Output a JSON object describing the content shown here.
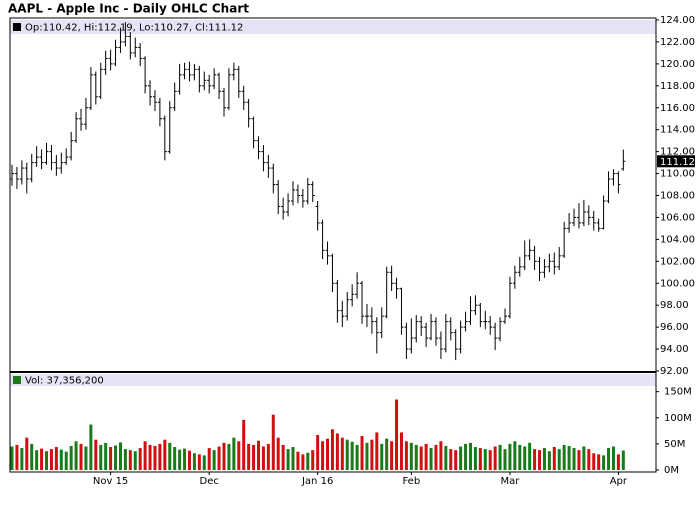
{
  "chart_data": {
    "type": "ohlc",
    "title": "AAPL - Apple Inc - Daily OHLC Chart",
    "ohlc_legend": "Op:110.42, Hi:112.19, Lo:110.27, Cl:111.12",
    "volume_legend": "Vol: 37,356,200",
    "categories": [
      null,
      null,
      null,
      null,
      null,
      null,
      null,
      null,
      null,
      null,
      null,
      null,
      null,
      null,
      null,
      null,
      null,
      null,
      null,
      null,
      "Nov 15",
      null,
      null,
      null,
      null,
      null,
      null,
      null,
      null,
      null,
      null,
      null,
      null,
      null,
      null,
      null,
      null,
      null,
      null,
      null,
      "Dec",
      null,
      null,
      null,
      null,
      null,
      null,
      null,
      null,
      null,
      null,
      null,
      null,
      null,
      null,
      null,
      null,
      null,
      null,
      null,
      null,
      null,
      "Jan 16",
      null,
      null,
      null,
      null,
      null,
      null,
      null,
      null,
      null,
      null,
      null,
      null,
      null,
      null,
      null,
      null,
      null,
      null,
      "Feb",
      null,
      null,
      null,
      null,
      null,
      null,
      null,
      null,
      null,
      null,
      null,
      null,
      null,
      null,
      null,
      null,
      null,
      null,
      null,
      "Mar",
      null,
      null,
      null,
      null,
      null,
      null,
      null,
      null,
      null,
      null,
      null,
      null,
      null,
      null,
      null,
      null,
      null,
      null,
      null,
      null,
      null,
      "Apr",
      null
    ],
    "open": [
      109.5,
      110,
      109.5,
      110.5,
      109.5,
      111,
      111.5,
      111,
      112,
      111,
      110.5,
      111,
      111.5,
      113,
      115,
      114.5,
      116,
      119,
      117,
      119.5,
      120.5,
      120,
      121.5,
      122,
      122.5,
      121,
      121.5,
      120.5,
      118,
      117,
      116.5,
      115,
      112,
      116,
      117.5,
      119,
      119.5,
      119,
      119.5,
      118,
      118.5,
      118,
      119,
      117.5,
      116,
      119,
      119.5,
      117.5,
      116.5,
      115,
      113,
      112,
      111,
      110.5,
      109,
      107,
      106.5,
      107.5,
      108.5,
      108,
      107.5,
      109,
      107,
      105.5,
      103,
      102.5,
      100,
      97.5,
      97,
      98.5,
      99,
      100,
      97,
      97,
      96.5,
      95.5,
      97,
      101,
      100,
      99.5,
      96,
      94,
      95,
      96.5,
      96,
      95,
      96.5,
      95,
      94,
      96.5,
      95.5,
      94,
      96,
      96.5,
      97.5,
      98,
      96.5,
      96.5,
      96,
      95,
      96.5,
      97,
      100,
      101,
      101.5,
      102.5,
      103,
      102,
      101,
      101.5,
      102,
      101.5,
      102.5,
      105,
      105.5,
      106,
      105.5,
      106.5,
      106,
      105.5,
      105,
      107.5,
      109.5,
      110,
      110.42
    ],
    "high": [
      110.8,
      110.6,
      111.2,
      111.0,
      111.8,
      112.5,
      112.2,
      112.8,
      112.6,
      111.7,
      111.9,
      112.3,
      113.8,
      115.6,
      115.9,
      116.9,
      119.7,
      119.3,
      120.1,
      121.2,
      121.3,
      122.2,
      123.3,
      123.8,
      122.9,
      122.4,
      121.9,
      120.7,
      118.5,
      117.6,
      116.9,
      115.3,
      116.6,
      118.3,
      120.0,
      120.1,
      120.2,
      120.0,
      119.8,
      119.3,
      119.0,
      119.6,
      119.2,
      117.8,
      119.6,
      120.1,
      119.8,
      118.0,
      116.8,
      115.2,
      113.4,
      112.6,
      111.7,
      110.9,
      109.4,
      107.8,
      108.2,
      109.3,
      109.0,
      108.6,
      109.6,
      109.3,
      107.5,
      105.8,
      103.8,
      102.7,
      100.3,
      98.4,
      99.2,
      99.9,
      101.0,
      100.2,
      98.1,
      97.8,
      96.9,
      97.8,
      101.5,
      101.6,
      100.5,
      99.6,
      96.4,
      96.8,
      97.1,
      97.0,
      96.4,
      97.2,
      96.9,
      95.6,
      97.2,
      96.9,
      95.8,
      96.6,
      97.4,
      98.8,
      98.9,
      98.2,
      97.5,
      97.0,
      96.4,
      96.9,
      97.7,
      100.6,
      101.6,
      102.4,
      103.9,
      104.0,
      103.4,
      102.4,
      102.2,
      102.7,
      102.8,
      103.3,
      105.6,
      106.4,
      106.8,
      107.3,
      107.6,
      107.1,
      106.6,
      105.9,
      108.0,
      110.2,
      110.4,
      110.2,
      112.19
    ],
    "low": [
      108.9,
      108.6,
      109.0,
      108.2,
      109.2,
      110.6,
      110.4,
      110.8,
      110.3,
      109.8,
      110.0,
      110.8,
      111.2,
      112.8,
      113.9,
      114.0,
      115.8,
      116.3,
      116.8,
      119.0,
      119.4,
      119.8,
      121.0,
      121.6,
      120.4,
      120.6,
      119.8,
      117.3,
      116.2,
      115.7,
      114.3,
      111.2,
      111.8,
      115.7,
      117.2,
      118.6,
      118.4,
      118.5,
      117.4,
      117.6,
      117.3,
      117.7,
      116.8,
      115.2,
      115.8,
      118.5,
      116.9,
      115.8,
      114.2,
      112.3,
      111.3,
      110.2,
      109.6,
      108.2,
      106.3,
      105.8,
      106.1,
      107.1,
      107.3,
      106.9,
      107.2,
      107.4,
      104.8,
      102.2,
      101.7,
      99.2,
      96.4,
      96.0,
      96.6,
      97.9,
      98.6,
      96.3,
      96.0,
      95.4,
      93.6,
      95.0,
      96.8,
      99.3,
      98.6,
      95.3,
      93.1,
      93.6,
      94.6,
      95.2,
      94.2,
      94.8,
      94.3,
      93.1,
      93.7,
      94.8,
      93.0,
      93.6,
      95.6,
      96.2,
      97.1,
      96.0,
      95.8,
      95.3,
      93.9,
      94.7,
      96.3,
      96.8,
      99.5,
      100.6,
      101.2,
      102.1,
      101.2,
      100.2,
      100.5,
      101.0,
      100.8,
      101.2,
      102.3,
      104.6,
      105.2,
      105.0,
      105.2,
      105.3,
      104.8,
      104.7,
      104.9,
      107.3,
      108.9,
      108.2,
      110.27
    ],
    "close": [
      110,
      109.5,
      110.5,
      109.5,
      111,
      111.5,
      111,
      112,
      111,
      110.5,
      111,
      111.5,
      113,
      115,
      114.5,
      116,
      119,
      117,
      119.5,
      120.5,
      120,
      121.5,
      122,
      122.5,
      121,
      121.5,
      120.5,
      118,
      117,
      116.5,
      115,
      112,
      116,
      117.5,
      119,
      119.5,
      119,
      119.5,
      118,
      118.5,
      118,
      119,
      117.5,
      116,
      119,
      119.5,
      117.5,
      116.5,
      115,
      113,
      112,
      111,
      110.5,
      109,
      107,
      106.5,
      107.5,
      108.5,
      108,
      107.5,
      109,
      108,
      105.5,
      103,
      102.5,
      100,
      97.5,
      97,
      98.5,
      99,
      100,
      97,
      97,
      96.5,
      95.5,
      97,
      101,
      100,
      99.5,
      96,
      94,
      95,
      96.5,
      96,
      95,
      96.5,
      95,
      94,
      96.5,
      95.5,
      94,
      96,
      96.5,
      97.5,
      98,
      96.5,
      96.5,
      96,
      95,
      96.5,
      97,
      100,
      101,
      101.5,
      102.5,
      103,
      102,
      101,
      101.5,
      102,
      101.5,
      102.5,
      105,
      105.5,
      106,
      105.5,
      106.5,
      106,
      105.5,
      105,
      107.5,
      109.5,
      110,
      109,
      111.12
    ],
    "volume": [
      45,
      48,
      42,
      62,
      50,
      38,
      41,
      36,
      40,
      44,
      39,
      35,
      46,
      55,
      50,
      45,
      87,
      58,
      48,
      52,
      44,
      47,
      53,
      40,
      38,
      36,
      42,
      55,
      48,
      46,
      50,
      58,
      52,
      44,
      39,
      41,
      37,
      32,
      30,
      28,
      42,
      38,
      45,
      52,
      50,
      62,
      55,
      96,
      50,
      48,
      56,
      45,
      50,
      106,
      62,
      48,
      40,
      44,
      35,
      30,
      33,
      38,
      67,
      55,
      60,
      78,
      70,
      62,
      58,
      54,
      48,
      65,
      52,
      58,
      72,
      50,
      60,
      55,
      135,
      72,
      55,
      52,
      48,
      45,
      50,
      42,
      48,
      55,
      46,
      40,
      38,
      45,
      50,
      52,
      44,
      42,
      40,
      38,
      45,
      48,
      40,
      50,
      55,
      48,
      45,
      52,
      40,
      38,
      42,
      36,
      44,
      40,
      48,
      46,
      42,
      38,
      45,
      40,
      32,
      30,
      28,
      42,
      45,
      30,
      37.3562
    ],
    "ylim": [
      92,
      124
    ],
    "yticks": [
      {
        "value": 92,
        "label": "92.00"
      },
      {
        "value": 94,
        "label": "94.00"
      },
      {
        "value": 96,
        "label": "96.00"
      },
      {
        "value": 98,
        "label": "98.00"
      },
      {
        "value": 100,
        "label": "100.00"
      },
      {
        "value": 102,
        "label": "102.00"
      },
      {
        "value": 104,
        "label": "104.00"
      },
      {
        "value": 106,
        "label": "106.00"
      },
      {
        "value": 108,
        "label": "108.00"
      },
      {
        "value": 110,
        "label": "110.00"
      },
      {
        "value": 112,
        "label": "112.00"
      },
      {
        "value": 114,
        "label": "114.00"
      },
      {
        "value": 116,
        "label": "116.00"
      },
      {
        "value": 118,
        "label": "118.00"
      },
      {
        "value": 120,
        "label": "120.00"
      },
      {
        "value": 122,
        "label": "122.00"
      },
      {
        "value": 124,
        "label": "124.00"
      }
    ],
    "y2lim": [
      0,
      180
    ],
    "y2ticks": [
      {
        "value": 0,
        "label": "0M"
      },
      {
        "value": 50,
        "label": "50M"
      },
      {
        "value": 100,
        "label": "100M"
      },
      {
        "value": 150,
        "label": "150M"
      }
    ],
    "bar_color": "#000000",
    "up_color": "#1a7a1a",
    "down_color": "#d01010",
    "legend_color": "#e4e4f6",
    "grid": false
  }
}
